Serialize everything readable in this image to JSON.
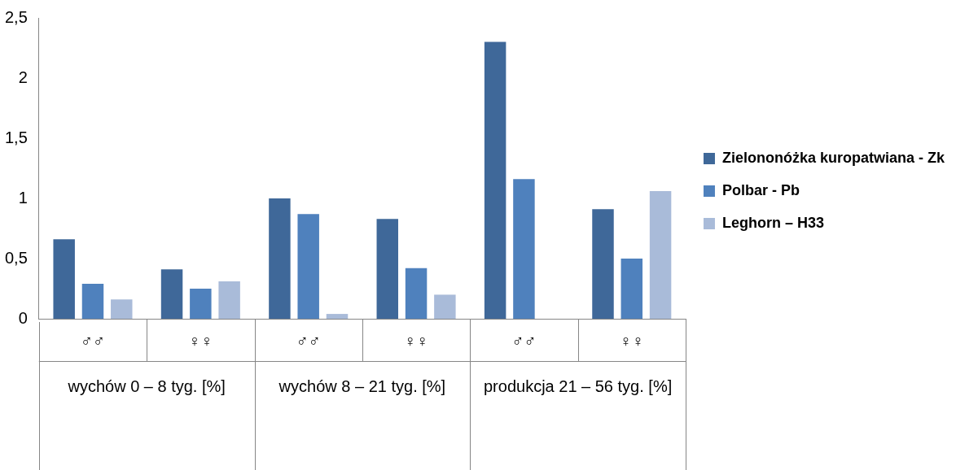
{
  "chart_data": {
    "type": "bar",
    "categories": [
      "♂♂",
      "♀♀",
      "♂♂",
      "♀♀",
      "♂♂",
      "♀♀"
    ],
    "series": [
      {
        "name": "Zielononóżka kuropatwiana - Zk",
        "color": "#3f6899",
        "values": [
          0.66,
          0.41,
          1.0,
          0.83,
          2.3,
          0.91
        ]
      },
      {
        "name": "Polbar - Pb",
        "color": "#4f81bd",
        "values": [
          0.29,
          0.25,
          0.87,
          0.42,
          1.16,
          0.5
        ]
      },
      {
        "name": "Leghorn – H33",
        "color": "#a9bbd9",
        "values": [
          0.16,
          0.31,
          0.04,
          0.2,
          null,
          1.06
        ]
      }
    ],
    "ylim": [
      0,
      2.5
    ],
    "yticks": [
      0,
      {
        "value": 0.5,
        "label": "0,5"
      },
      1,
      {
        "value": 1.5,
        "label": "1,5"
      },
      2,
      {
        "value": 2.5,
        "label": "2,5"
      }
    ],
    "annotations": [
      "wychów 0 – 8 tyg. [%]",
      "wychów 8 – 21 tyg. [%]",
      "produkcja 21 – 56 tyg. [%]"
    ],
    "grid": false,
    "legend": "right"
  }
}
